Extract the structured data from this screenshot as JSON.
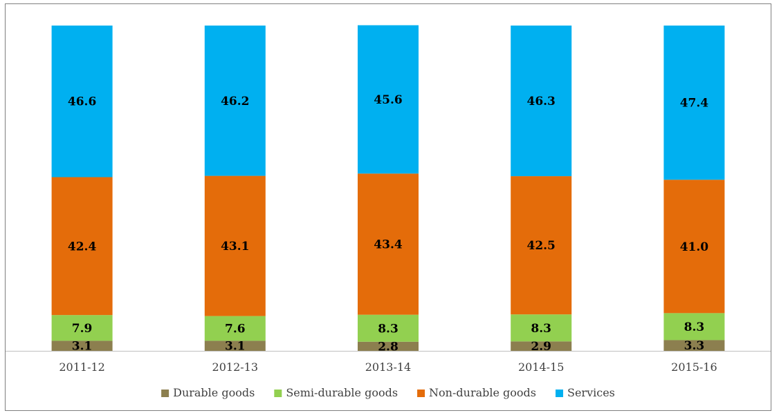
{
  "chart_data": {
    "type": "bar",
    "stacked": true,
    "categories": [
      "2011-12",
      "2012-13",
      "2013-14",
      "2014-15",
      "2015-16"
    ],
    "series": [
      {
        "name": "Durable goods",
        "color": "#8c7f4f",
        "values": [
          3.1,
          3.1,
          2.8,
          2.9,
          3.3
        ]
      },
      {
        "name": "Semi-durable goods",
        "color": "#92d050",
        "values": [
          7.9,
          7.6,
          8.3,
          8.3,
          8.3
        ]
      },
      {
        "name": "Non-durable goods",
        "color": "#e46c0a",
        "values": [
          42.4,
          43.1,
          43.4,
          42.5,
          41.0
        ]
      },
      {
        "name": "Services",
        "color": "#00b0f0",
        "values": [
          46.6,
          46.2,
          45.6,
          46.3,
          47.4
        ]
      }
    ],
    "value_labels": [
      [
        "3.1",
        "3.1",
        "2.8",
        "2.9",
        "3.3"
      ],
      [
        "7.9",
        "7.6",
        "8.3",
        "8.3",
        "8.3"
      ],
      [
        "42.4",
        "43.1",
        "43.4",
        "42.5",
        "41.0"
      ],
      [
        "46.6",
        "46.2",
        "45.6",
        "46.3",
        "47.4"
      ]
    ],
    "ylim": [
      0,
      100
    ],
    "grid": false,
    "legend_position": "bottom"
  }
}
